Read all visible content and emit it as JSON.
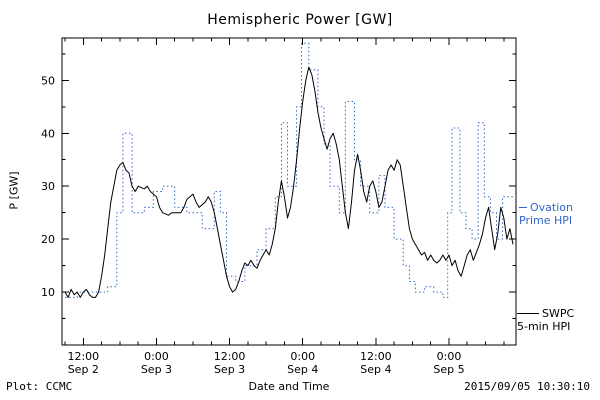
{
  "header": {
    "title": "Hemispheric Power [GW]"
  },
  "footer": {
    "left": "Plot: CCMC",
    "xlabel": "Date and Time",
    "timestamp": "2015/09/05 10:30:10"
  },
  "legend": {
    "ovation_line1": "Ovation",
    "ovation_line2": "Prime HPI",
    "swpc_line1": "SWPC",
    "swpc_line2": "5-min HPI",
    "ovation_color": "#3366cc",
    "swpc_color": "#000000"
  },
  "chart_data": {
    "type": "line",
    "title": "Hemispheric Power [GW]",
    "xlabel": "Date and Time",
    "ylabel": "P [GW]",
    "x_unit": "hours since 2015-09-02 09:00 UT",
    "xlim": [
      -0.5,
      74
    ],
    "ylim": [
      0,
      58
    ],
    "grid": false,
    "yticks": [
      10,
      20,
      30,
      40,
      50
    ],
    "xticks": [
      {
        "t": 3,
        "time": "12:00",
        "date": "Sep 2"
      },
      {
        "t": 15,
        "time": "0:00",
        "date": "Sep 3"
      },
      {
        "t": 27,
        "time": "12:00",
        "date": "Sep 3"
      },
      {
        "t": 39,
        "time": "0:00",
        "date": "Sep 4"
      },
      {
        "t": 51,
        "time": "12:00",
        "date": "Sep 4"
      },
      {
        "t": 63,
        "time": "0:00",
        "date": "Sep 5"
      }
    ],
    "series": [
      {
        "name": "Ovation Prime HPI",
        "color": "#3366cc",
        "style": "dotted-step",
        "points": [
          [
            0,
            9
          ],
          [
            2,
            10
          ],
          [
            5,
            10
          ],
          [
            7,
            11
          ],
          [
            8.5,
            25
          ],
          [
            9.5,
            40
          ],
          [
            11,
            25
          ],
          [
            13,
            26
          ],
          [
            14.5,
            29
          ],
          [
            16,
            30
          ],
          [
            18,
            26
          ],
          [
            20,
            25
          ],
          [
            22.5,
            22
          ],
          [
            24.5,
            29
          ],
          [
            25.5,
            25
          ],
          [
            26.5,
            13
          ],
          [
            28,
            12
          ],
          [
            29.5,
            15
          ],
          [
            31.5,
            18
          ],
          [
            33,
            22
          ],
          [
            34.5,
            28
          ],
          [
            35.5,
            42
          ],
          [
            36.5,
            30
          ],
          [
            38,
            45
          ],
          [
            38.8,
            57
          ],
          [
            40,
            52
          ],
          [
            41.5,
            45
          ],
          [
            42.5,
            38
          ],
          [
            43.5,
            30
          ],
          [
            45,
            25
          ],
          [
            46,
            46
          ],
          [
            47.5,
            35
          ],
          [
            48.5,
            30
          ],
          [
            50,
            25
          ],
          [
            51.5,
            32
          ],
          [
            52.5,
            26
          ],
          [
            54,
            20
          ],
          [
            55.5,
            15
          ],
          [
            56.5,
            12
          ],
          [
            57.5,
            10
          ],
          [
            59,
            11
          ],
          [
            60.5,
            10
          ],
          [
            62,
            9
          ],
          [
            62.8,
            25
          ],
          [
            63.5,
            41
          ],
          [
            64.8,
            25
          ],
          [
            65.8,
            22
          ],
          [
            66.8,
            20
          ],
          [
            67.8,
            42
          ],
          [
            68.8,
            28
          ],
          [
            69.8,
            25
          ],
          [
            70.8,
            20
          ],
          [
            71.8,
            28
          ],
          [
            73.5,
            28
          ]
        ]
      },
      {
        "name": "SWPC 5-min HPI",
        "color": "#000000",
        "style": "solid",
        "points": [
          [
            0,
            10
          ],
          [
            0.5,
            9
          ],
          [
            1,
            10.5
          ],
          [
            1.5,
            9.5
          ],
          [
            2,
            10
          ],
          [
            2.5,
            9
          ],
          [
            3,
            10
          ],
          [
            3.5,
            10.5
          ],
          [
            4,
            9.5
          ],
          [
            4.5,
            9
          ],
          [
            5,
            9
          ],
          [
            5.5,
            10
          ],
          [
            6,
            13
          ],
          [
            6.5,
            17
          ],
          [
            7,
            22
          ],
          [
            7.5,
            27
          ],
          [
            8,
            30
          ],
          [
            8.5,
            33
          ],
          [
            9,
            34
          ],
          [
            9.5,
            34.5
          ],
          [
            10,
            33
          ],
          [
            10.5,
            32.5
          ],
          [
            11,
            30
          ],
          [
            11.5,
            29
          ],
          [
            12,
            30
          ],
          [
            13,
            29.5
          ],
          [
            13.5,
            30
          ],
          [
            14,
            29
          ],
          [
            15,
            28
          ],
          [
            15.5,
            26
          ],
          [
            16,
            25
          ],
          [
            17,
            24.5
          ],
          [
            17.5,
            25
          ],
          [
            18,
            25
          ],
          [
            19,
            25
          ],
          [
            19.5,
            26
          ],
          [
            20,
            27.5
          ],
          [
            20.5,
            28
          ],
          [
            21,
            28.5
          ],
          [
            21.5,
            27
          ],
          [
            22,
            26
          ],
          [
            23,
            27
          ],
          [
            23.5,
            28
          ],
          [
            24,
            27
          ],
          [
            24.5,
            25
          ],
          [
            25,
            22
          ],
          [
            25.5,
            19
          ],
          [
            26,
            16
          ],
          [
            26.5,
            13
          ],
          [
            27,
            11
          ],
          [
            27.5,
            10
          ],
          [
            28,
            10.5
          ],
          [
            28.5,
            12
          ],
          [
            29,
            14
          ],
          [
            29.5,
            15.5
          ],
          [
            30,
            15
          ],
          [
            30.5,
            16
          ],
          [
            31,
            15
          ],
          [
            31.5,
            14.5
          ],
          [
            32,
            16
          ],
          [
            32.5,
            17
          ],
          [
            33,
            18
          ],
          [
            33.5,
            17
          ],
          [
            34,
            19
          ],
          [
            34.5,
            22
          ],
          [
            35,
            27
          ],
          [
            35.5,
            31
          ],
          [
            36,
            28
          ],
          [
            36.5,
            24
          ],
          [
            37,
            26
          ],
          [
            37.5,
            30
          ],
          [
            38,
            35
          ],
          [
            38.5,
            41
          ],
          [
            39,
            46
          ],
          [
            39.5,
            50
          ],
          [
            40,
            52.5
          ],
          [
            40.5,
            51
          ],
          [
            41,
            48
          ],
          [
            41.5,
            44
          ],
          [
            42,
            41
          ],
          [
            42.5,
            39
          ],
          [
            43,
            37
          ],
          [
            43.5,
            39
          ],
          [
            44,
            40
          ],
          [
            44.5,
            38
          ],
          [
            45,
            35
          ],
          [
            45.5,
            30
          ],
          [
            46,
            25
          ],
          [
            46.5,
            22
          ],
          [
            47,
            27
          ],
          [
            47.5,
            33
          ],
          [
            48,
            36
          ],
          [
            48.5,
            33
          ],
          [
            49,
            29
          ],
          [
            49.5,
            27
          ],
          [
            50,
            30
          ],
          [
            50.5,
            31
          ],
          [
            51,
            29
          ],
          [
            51.5,
            26
          ],
          [
            52,
            27
          ],
          [
            52.5,
            30
          ],
          [
            53,
            33
          ],
          [
            53.5,
            34
          ],
          [
            54,
            33
          ],
          [
            54.5,
            35
          ],
          [
            55,
            34
          ],
          [
            55.5,
            30
          ],
          [
            56,
            26
          ],
          [
            56.5,
            22
          ],
          [
            57,
            20
          ],
          [
            57.5,
            19
          ],
          [
            58,
            18
          ],
          [
            58.5,
            17
          ],
          [
            59,
            17.5
          ],
          [
            59.5,
            16
          ],
          [
            60,
            17
          ],
          [
            60.5,
            16
          ],
          [
            61,
            15.5
          ],
          [
            61.5,
            16
          ],
          [
            62,
            17
          ],
          [
            62.5,
            16
          ],
          [
            63,
            17
          ],
          [
            63.5,
            15
          ],
          [
            64,
            16
          ],
          [
            64.5,
            14
          ],
          [
            65,
            13
          ],
          [
            65.5,
            15
          ],
          [
            66,
            17
          ],
          [
            66.5,
            18
          ],
          [
            67,
            16
          ],
          [
            67.5,
            17.5
          ],
          [
            68,
            19
          ],
          [
            68.5,
            21
          ],
          [
            69,
            24
          ],
          [
            69.5,
            26
          ],
          [
            70,
            22
          ],
          [
            70.5,
            18
          ],
          [
            71,
            21
          ],
          [
            71.5,
            26
          ],
          [
            72,
            24
          ],
          [
            72.5,
            20
          ],
          [
            73,
            22
          ],
          [
            73.5,
            19
          ]
        ]
      }
    ]
  }
}
